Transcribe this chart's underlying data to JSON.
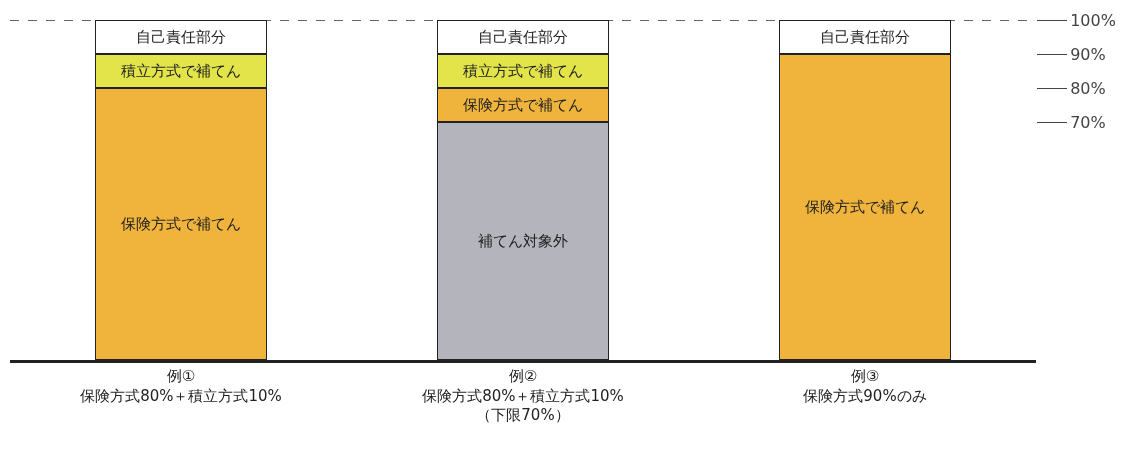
{
  "chart_data": {
    "type": "bar",
    "stacked": true,
    "categories": [
      "例①\n保険方式80%＋積立方式10%",
      "例②\n保険方式80%＋積立方式10%\n（下限70%）",
      "例③\n保険方式90%のみ"
    ],
    "series": [
      {
        "name": "補てん対象外",
        "color": "#b4b4bc",
        "values": [
          null,
          70,
          null
        ]
      },
      {
        "name": "保険方式で補てん",
        "color": "#f0b43c",
        "values": [
          80,
          10,
          90
        ]
      },
      {
        "name": "積立方式で補てん",
        "color": "#e2e44a",
        "values": [
          10,
          10,
          null
        ]
      },
      {
        "name": "自己責任部分",
        "color": "#ffffff",
        "values": [
          10,
          10,
          10
        ]
      }
    ],
    "ylim": [
      0,
      100
    ],
    "yticks": [
      {
        "value": 70,
        "label": "70%"
      },
      {
        "value": 80,
        "label": "80%"
      },
      {
        "value": 90,
        "label": "90%"
      },
      {
        "value": 100,
        "label": "100%"
      }
    ],
    "ref_lines": [
      {
        "axis": "y",
        "value": 100,
        "label": null,
        "line_style": "dashed",
        "color": "#333333"
      }
    ],
    "legend": false
  }
}
